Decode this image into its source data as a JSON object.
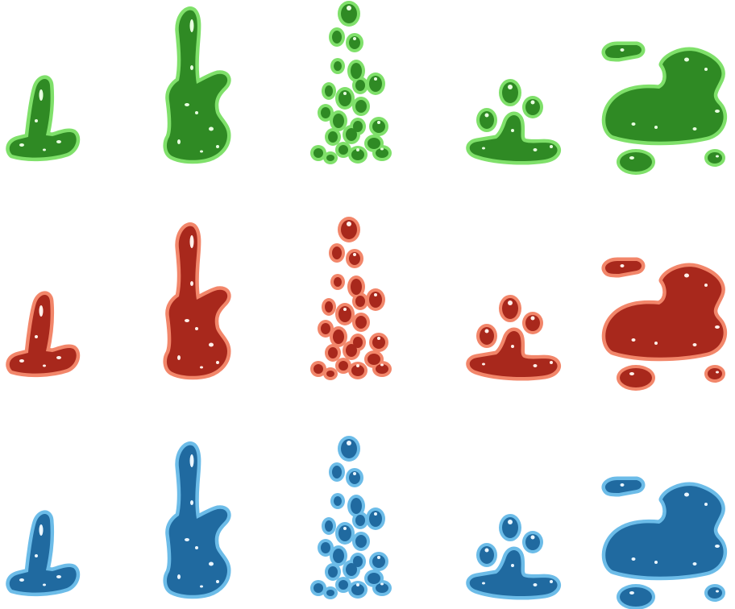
{
  "sheet": {
    "type": "liquid-splash-sprite-sheet",
    "background": "#ffffff",
    "frames_per_row": 5,
    "frames": [
      "splash-small",
      "splash-tall",
      "droplet-column",
      "splash-settle",
      "puddle"
    ]
  },
  "palettes": [
    {
      "name": "green",
      "fill": "#2f8a24",
      "outline": "#7fe06a",
      "highlight": "#e8ffe0"
    },
    {
      "name": "red",
      "fill": "#a8281c",
      "outline": "#f2866a",
      "highlight": "#fff0ea"
    },
    {
      "name": "blue",
      "fill": "#206aa0",
      "outline": "#6cbce8",
      "highlight": "#eaf6ff"
    }
  ]
}
